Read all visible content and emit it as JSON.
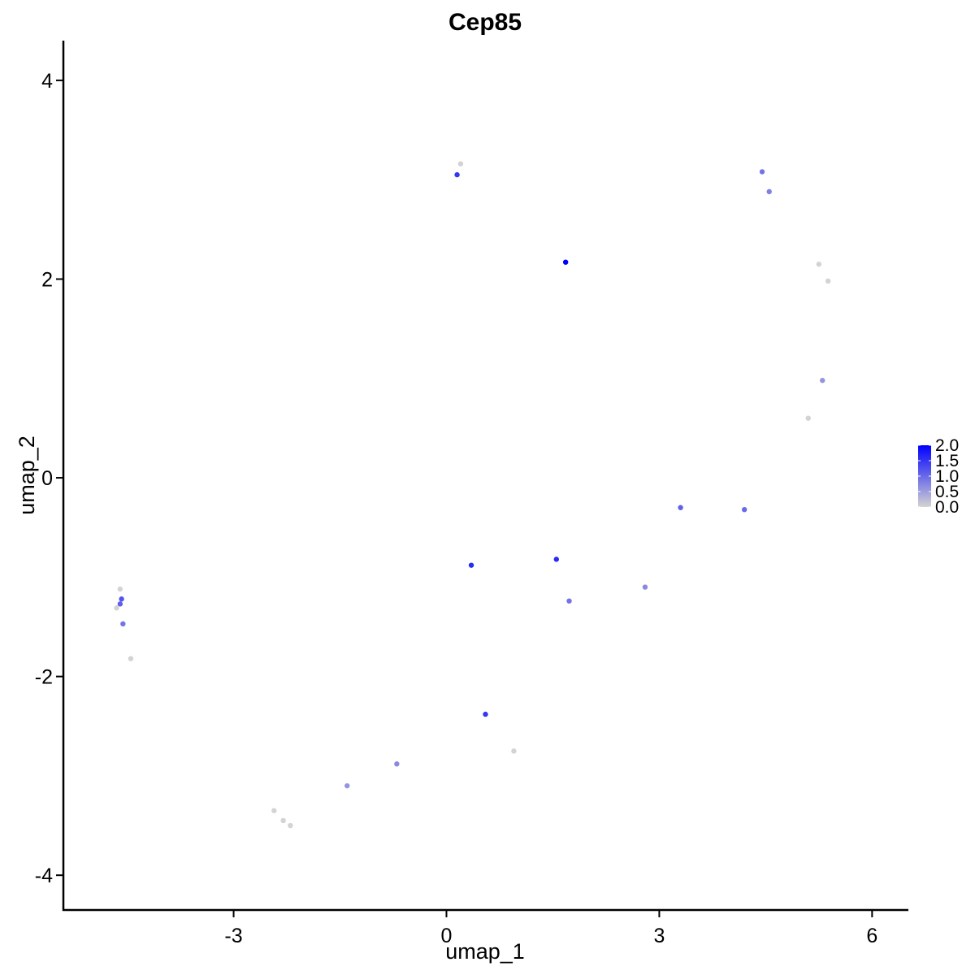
{
  "chart_data": {
    "type": "scatter",
    "title": "Cep85",
    "xlabel": "umap_1",
    "ylabel": "umap_2",
    "xlim": [
      -5.4,
      6.5
    ],
    "ylim": [
      -4.35,
      4.4
    ],
    "x_ticks": [
      {
        "value": -3,
        "label": "-3"
      },
      {
        "value": 0,
        "label": "0"
      },
      {
        "value": 3,
        "label": "3"
      },
      {
        "value": 6,
        "label": "6"
      }
    ],
    "y_ticks": [
      {
        "value": -4,
        "label": "-4"
      },
      {
        "value": -2,
        "label": "-2"
      },
      {
        "value": 0,
        "label": "0"
      },
      {
        "value": 2,
        "label": "2"
      },
      {
        "value": 4,
        "label": "4"
      }
    ],
    "grid": false,
    "colorbar": {
      "position": "right",
      "min": 0,
      "max": 2.0,
      "low_color": "#d3d3d3",
      "high_color": "#0000ff",
      "ticks": [
        {
          "value": 2.0,
          "label": "2.0"
        },
        {
          "value": 1.5,
          "label": "1.5"
        },
        {
          "value": 1.0,
          "label": "1.0"
        },
        {
          "value": 0.5,
          "label": "0.5"
        },
        {
          "value": 0.0,
          "label": "0.0"
        }
      ]
    },
    "points": [
      {
        "x": 1.68,
        "y": 2.17,
        "v": 2.0
      },
      {
        "x": 0.35,
        "y": -0.88,
        "v": 1.6
      },
      {
        "x": 1.55,
        "y": -0.82,
        "v": 1.6
      },
      {
        "x": 0.15,
        "y": 3.05,
        "v": 1.5
      },
      {
        "x": 0.55,
        "y": -2.38,
        "v": 1.5
      },
      {
        "x": -4.58,
        "y": -1.22,
        "v": 1.2
      },
      {
        "x": -4.6,
        "y": -1.27,
        "v": 1.1
      },
      {
        "x": -4.56,
        "y": -1.47,
        "v": 0.9
      },
      {
        "x": -4.65,
        "y": -1.31,
        "v": 0.0
      },
      {
        "x": -4.6,
        "y": -1.12,
        "v": 0.0
      },
      {
        "x": -4.45,
        "y": -1.82,
        "v": 0.0
      },
      {
        "x": 0.2,
        "y": 3.16,
        "v": 0.0
      },
      {
        "x": 4.45,
        "y": 3.08,
        "v": 0.9
      },
      {
        "x": 4.55,
        "y": 2.88,
        "v": 0.8
      },
      {
        "x": 5.25,
        "y": 2.15,
        "v": 0.0
      },
      {
        "x": 5.38,
        "y": 1.98,
        "v": 0.0
      },
      {
        "x": 5.3,
        "y": 0.98,
        "v": 0.6
      },
      {
        "x": 5.1,
        "y": 0.6,
        "v": 0.0
      },
      {
        "x": -2.3,
        "y": -3.45,
        "v": 0.0
      },
      {
        "x": -2.2,
        "y": -3.5,
        "v": 0.0
      },
      {
        "x": -2.43,
        "y": -3.35,
        "v": 0.0
      },
      {
        "x": 1.73,
        "y": -1.24,
        "v": 0.9
      },
      {
        "x": 4.2,
        "y": -0.32,
        "v": 1.0
      },
      {
        "x": 3.3,
        "y": -0.3,
        "v": 1.1
      },
      {
        "x": 2.8,
        "y": -1.1,
        "v": 0.7
      },
      {
        "x": 0.95,
        "y": -2.75,
        "v": 0.0
      },
      {
        "x": -1.4,
        "y": -3.1,
        "v": 0.6
      },
      {
        "x": -0.7,
        "y": -2.88,
        "v": 0.7
      }
    ]
  }
}
